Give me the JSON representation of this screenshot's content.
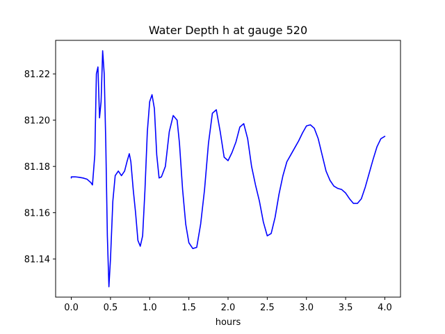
{
  "chart_data": {
    "type": "line",
    "title": "Water Depth h at gauge 520",
    "xlabel": "hours",
    "ylabel": "",
    "xlim": [
      -0.2,
      4.2
    ],
    "ylim": [
      81.1235,
      81.2345
    ],
    "grid": false,
    "legend": "none",
    "x_ticks": [
      0.0,
      0.5,
      1.0,
      1.5,
      2.0,
      2.5,
      3.0,
      3.5,
      4.0
    ],
    "x_tick_labels": [
      "0.0",
      "0.5",
      "1.0",
      "1.5",
      "2.0",
      "2.5",
      "3.0",
      "3.5",
      "4.0"
    ],
    "y_ticks": [
      81.14,
      81.16,
      81.18,
      81.2,
      81.22
    ],
    "y_tick_labels": [
      "81.14",
      "81.16",
      "81.18",
      "81.20",
      "81.22"
    ],
    "series": [
      {
        "color": "#0000ff",
        "x": [
          0.0,
          0.0,
          0.05,
          0.1,
          0.15,
          0.2,
          0.25,
          0.27,
          0.3,
          0.32,
          0.34,
          0.36,
          0.38,
          0.4,
          0.42,
          0.44,
          0.46,
          0.48,
          0.5,
          0.53,
          0.56,
          0.6,
          0.64,
          0.68,
          0.71,
          0.74,
          0.76,
          0.79,
          0.82,
          0.85,
          0.88,
          0.91,
          0.94,
          0.97,
          1.0,
          1.03,
          1.06,
          1.09,
          1.12,
          1.15,
          1.2,
          1.25,
          1.3,
          1.35,
          1.38,
          1.42,
          1.46,
          1.5,
          1.55,
          1.6,
          1.65,
          1.7,
          1.75,
          1.8,
          1.85,
          1.9,
          1.95,
          2.0,
          2.05,
          2.1,
          2.15,
          2.2,
          2.25,
          2.3,
          2.35,
          2.4,
          2.45,
          2.5,
          2.55,
          2.6,
          2.65,
          2.7,
          2.75,
          2.8,
          2.85,
          2.9,
          2.95,
          3.0,
          3.05,
          3.1,
          3.15,
          3.2,
          3.25,
          3.3,
          3.35,
          3.4,
          3.45,
          3.5,
          3.55,
          3.6,
          3.65,
          3.7,
          3.75,
          3.8,
          3.85,
          3.9,
          3.95,
          4.0
        ],
        "y": [
          81.175,
          81.1755,
          81.1755,
          81.1753,
          81.175,
          81.1745,
          81.173,
          81.172,
          81.185,
          81.22,
          81.223,
          81.201,
          81.208,
          81.23,
          81.22,
          81.19,
          81.15,
          81.128,
          81.14,
          81.165,
          81.176,
          81.178,
          81.176,
          81.178,
          81.182,
          81.1855,
          81.182,
          81.17,
          81.16,
          81.148,
          81.1455,
          81.15,
          81.17,
          81.195,
          81.208,
          81.211,
          81.205,
          81.185,
          81.175,
          81.1755,
          81.18,
          81.195,
          81.202,
          81.2,
          81.19,
          81.17,
          81.155,
          81.147,
          81.1445,
          81.145,
          81.155,
          81.17,
          81.19,
          81.203,
          81.2045,
          81.195,
          81.184,
          81.1825,
          81.186,
          81.1905,
          81.197,
          81.1985,
          81.192,
          81.18,
          81.172,
          81.165,
          81.156,
          81.15,
          81.151,
          81.158,
          81.168,
          81.176,
          81.182,
          81.185,
          81.188,
          81.191,
          81.1945,
          81.1975,
          81.198,
          81.1965,
          81.192,
          81.185,
          81.178,
          81.174,
          81.1715,
          81.1705,
          81.17,
          81.1685,
          81.166,
          81.164,
          81.164,
          81.166,
          81.171,
          81.177,
          81.183,
          81.1885,
          81.192,
          81.193
        ]
      }
    ]
  }
}
